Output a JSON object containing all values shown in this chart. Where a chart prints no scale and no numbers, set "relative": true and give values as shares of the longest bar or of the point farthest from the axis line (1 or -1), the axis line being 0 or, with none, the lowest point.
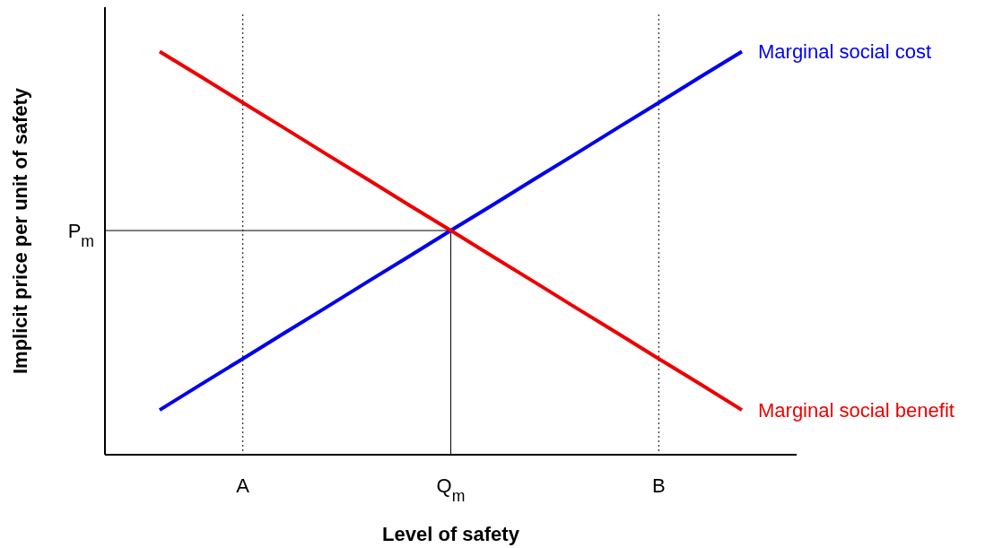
{
  "chart_data": {
    "type": "line",
    "relative": true,
    "xlabel": "Level of safety",
    "ylabel": "Implicit price per unit of safety",
    "categories": [
      null,
      null,
      "A",
      null,
      null,
      null,
      null,
      "Q$_{m}$",
      null,
      null,
      null,
      null,
      "B",
      null,
      null
    ],
    "series": [
      {
        "name": "Marginal social cost",
        "color": "#0000ee",
        "values": [
          0.111,
          0.175,
          0.238,
          0.302,
          0.365,
          0.429,
          0.492,
          0.556,
          0.619,
          0.683,
          0.746,
          0.81,
          0.873,
          0.937,
          1
        ]
      },
      {
        "name": "Marginal social benefit",
        "color": "#ee0000",
        "values": [
          1,
          0.937,
          0.873,
          0.81,
          0.746,
          0.683,
          0.619,
          0.556,
          0.492,
          0.429,
          0.365,
          0.302,
          0.238,
          0.175,
          0.111
        ]
      }
    ],
    "ref_lines": [
      {
        "axis": "x",
        "value": "A",
        "line_style": "dotted",
        "color": "#000000"
      },
      {
        "axis": "x",
        "value": "B",
        "line_style": "dotted",
        "color": "#000000"
      },
      {
        "axis": "x",
        "value": "Q$_{m}$",
        "line_style": "solid",
        "color": "#000000"
      },
      {
        "axis": "y",
        "value": 0.556,
        "label": "P$_{m}$",
        "line_style": "solid",
        "color": "#000000"
      }
    ],
    "grid": false,
    "legend": false
  }
}
